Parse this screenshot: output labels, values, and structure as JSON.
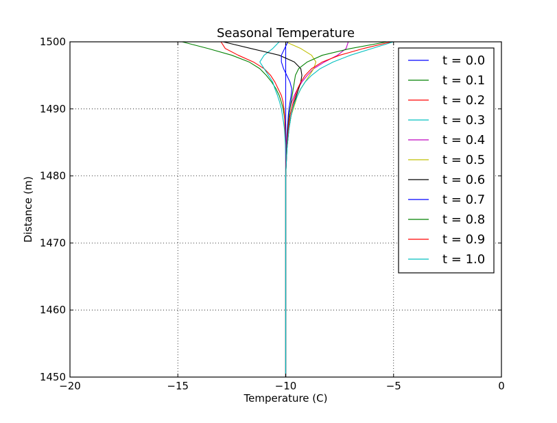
{
  "chart_data": {
    "type": "line",
    "title": "Seasonal Temperature",
    "xlabel": "Temperature (C)",
    "ylabel": "Distance (m)",
    "xlim": [
      -20,
      0
    ],
    "ylim": [
      1450,
      1500
    ],
    "xticks": [
      -20,
      -15,
      -10,
      -5,
      0
    ],
    "xtick_labels": [
      "−20",
      "−15",
      "−10",
      "−5",
      "0"
    ],
    "yticks": [
      1450,
      1460,
      1470,
      1480,
      1490,
      1500
    ],
    "ytick_labels": [
      "1450",
      "1460",
      "1470",
      "1480",
      "1490",
      "1500"
    ],
    "grid": true,
    "grid_style": "dotted",
    "legend_position": "top-right",
    "y": [
      1500,
      1499,
      1498,
      1497,
      1496,
      1495,
      1494,
      1493,
      1492,
      1491,
      1490,
      1489,
      1488,
      1487,
      1486,
      1485,
      1484,
      1482,
      1480,
      1470,
      1460,
      1450
    ],
    "series": [
      {
        "name": "t = 0.0",
        "color": "#0000ff",
        "values": [
          -10.0,
          -10.0,
          -10.0,
          -10.0,
          -10.0,
          -10.0,
          -10.0,
          -10.0,
          -10.0,
          -10.0,
          -10.0,
          -10.0,
          -10.0,
          -10.0,
          -10.0,
          -10.0,
          -10.0,
          -10.0,
          -10.0,
          -10.0,
          -10.0,
          -10.0
        ]
      },
      {
        "name": "t = 0.1",
        "color": "#008000",
        "values": [
          -14.8,
          -13.6,
          -12.5,
          -11.7,
          -11.2,
          -10.9,
          -10.65,
          -10.45,
          -10.3,
          -10.2,
          -10.12,
          -10.07,
          -10.04,
          -10.03,
          -10.02,
          -10.01,
          -10.0,
          -10.0,
          -10.0,
          -10.0,
          -10.0,
          -10.0
        ]
      },
      {
        "name": "t = 0.2",
        "color": "#ff0000",
        "values": [
          -13.0,
          -12.8,
          -12.2,
          -11.5,
          -11.0,
          -10.7,
          -10.5,
          -10.35,
          -10.2,
          -10.12,
          -10.08,
          -10.05,
          -10.04,
          -10.03,
          -10.02,
          -10.01,
          -10.0,
          -10.0,
          -10.0,
          -10.0,
          -10.0,
          -10.0
        ]
      },
      {
        "name": "t = 0.3",
        "color": "#00bfbf",
        "values": [
          -10.3,
          -10.6,
          -11.0,
          -11.2,
          -11.0,
          -10.8,
          -10.6,
          -10.5,
          -10.38,
          -10.28,
          -10.2,
          -10.15,
          -10.1,
          -10.06,
          -10.04,
          -10.02,
          -10.01,
          -10.0,
          -10.0,
          -10.0,
          -10.0,
          -10.0
        ]
      },
      {
        "name": "t = 0.4",
        "color": "#bf00bf",
        "values": [
          -7.1,
          -7.2,
          -7.6,
          -8.2,
          -8.7,
          -9.0,
          -9.25,
          -9.45,
          -9.6,
          -9.72,
          -9.8,
          -9.85,
          -9.9,
          -9.93,
          -9.95,
          -9.97,
          -9.98,
          -10.0,
          -10.0,
          -10.0,
          -10.0,
          -10.0
        ]
      },
      {
        "name": "t = 0.5",
        "color": "#bfbf00",
        "values": [
          -10.0,
          -9.3,
          -8.8,
          -8.6,
          -8.7,
          -8.9,
          -9.1,
          -9.3,
          -9.45,
          -9.55,
          -9.65,
          -9.75,
          -9.82,
          -9.87,
          -9.9,
          -9.93,
          -9.96,
          -9.98,
          -10.0,
          -10.0,
          -10.0,
          -10.0
        ]
      },
      {
        "name": "t = 0.6",
        "color": "#000000",
        "values": [
          -12.9,
          -11.6,
          -10.3,
          -9.6,
          -9.3,
          -9.25,
          -9.3,
          -9.4,
          -9.5,
          -9.6,
          -9.68,
          -9.75,
          -9.8,
          -9.85,
          -9.88,
          -9.91,
          -9.94,
          -9.97,
          -10.0,
          -10.0,
          -10.0,
          -10.0
        ]
      },
      {
        "name": "t = 0.7",
        "color": "#0000ff",
        "values": [
          -9.9,
          -10.05,
          -10.2,
          -10.2,
          -10.1,
          -9.95,
          -9.8,
          -9.72,
          -9.75,
          -9.8,
          -9.85,
          -9.88,
          -9.9,
          -9.92,
          -9.94,
          -9.95,
          -9.97,
          -9.98,
          -10.0,
          -10.0,
          -10.0,
          -10.0
        ]
      },
      {
        "name": "t = 0.8",
        "color": "#008000",
        "values": [
          -5.3,
          -7.0,
          -8.3,
          -9.0,
          -9.4,
          -9.55,
          -9.6,
          -9.65,
          -9.7,
          -9.75,
          -9.8,
          -9.84,
          -9.87,
          -9.9,
          -9.92,
          -9.94,
          -9.96,
          -9.98,
          -10.0,
          -10.0,
          -10.0,
          -10.0
        ]
      },
      {
        "name": "t = 0.9",
        "color": "#ff0000",
        "values": [
          -5.1,
          -6.4,
          -7.5,
          -8.3,
          -8.8,
          -9.1,
          -9.3,
          -9.45,
          -9.55,
          -9.65,
          -9.73,
          -9.8,
          -9.85,
          -9.88,
          -9.91,
          -9.93,
          -9.95,
          -9.97,
          -10.0,
          -10.0,
          -10.0,
          -10.0
        ]
      },
      {
        "name": "t = 1.0",
        "color": "#00bfbf",
        "values": [
          -5.0,
          -6.0,
          -7.0,
          -7.8,
          -8.4,
          -8.8,
          -9.1,
          -9.3,
          -9.45,
          -9.58,
          -9.68,
          -9.75,
          -9.8,
          -9.85,
          -9.88,
          -9.91,
          -9.94,
          -9.97,
          -10.0,
          -10.0,
          -10.0,
          -10.0
        ]
      }
    ]
  }
}
